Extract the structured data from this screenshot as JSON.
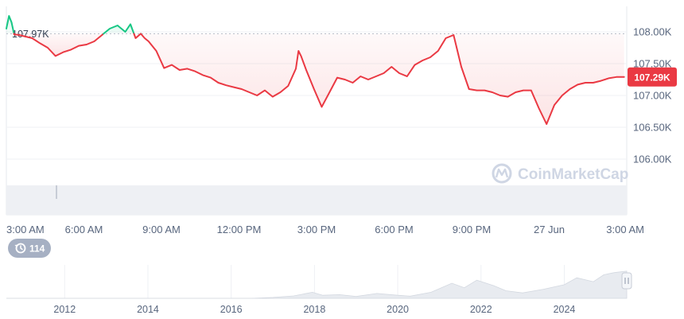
{
  "chart_data": {
    "type": "line",
    "x_ticks": [
      "3:00 AM",
      "6:00 AM",
      "9:00 AM",
      "12:00 PM",
      "3:00 PM",
      "6:00 PM",
      "9:00 PM",
      "27 Jun",
      "3:00 AM"
    ],
    "y_ticks": [
      "108.00K",
      "107.50K",
      "107.00K",
      "106.50K",
      "106.00K"
    ],
    "ylim": [
      105600,
      108400
    ],
    "reference": {
      "label": "107.97K",
      "value": 107970
    },
    "current": {
      "label": "107.29K",
      "value": 107290
    },
    "hours_span": [
      0,
      24
    ],
    "series": [
      {
        "x": [
          0,
          0.1,
          0.2,
          0.3,
          0.5,
          0.7,
          1.0,
          1.3,
          1.6,
          1.9,
          2.2,
          2.5,
          2.8,
          3.1,
          3.4,
          3.7,
          4.0,
          4.3,
          4.6,
          4.8,
          5.0,
          5.2,
          5.35,
          5.5,
          5.8,
          6.1,
          6.4,
          6.7,
          7.0,
          7.3,
          7.6,
          7.9,
          8.2,
          8.5,
          8.8,
          9.1,
          9.4,
          9.7,
          10.0,
          10.3,
          10.6,
          10.9,
          11.2,
          11.3,
          11.4,
          11.6,
          11.9,
          12.2,
          12.5,
          12.8,
          13.1,
          13.4,
          13.7,
          14.0,
          14.3,
          14.6,
          14.9,
          15.2,
          15.5,
          15.8,
          16.1,
          16.4,
          16.7,
          17.0,
          17.3,
          17.6,
          17.9,
          18.2,
          18.5,
          18.8,
          19.1,
          19.4,
          19.7,
          20.0,
          20.3,
          20.6,
          20.9,
          21.2,
          21.5,
          21.8,
          22.1,
          22.4,
          22.7,
          23.0,
          23.3,
          23.6,
          23.9
        ],
        "y": [
          108050,
          108250,
          108150,
          107960,
          107950,
          107930,
          107900,
          107820,
          107750,
          107620,
          107680,
          107720,
          107780,
          107800,
          107850,
          107950,
          108050,
          108100,
          108000,
          108120,
          107900,
          107970,
          107900,
          107850,
          107700,
          107430,
          107480,
          107400,
          107420,
          107380,
          107320,
          107280,
          107200,
          107160,
          107130,
          107100,
          107050,
          107000,
          107080,
          106980,
          107050,
          107150,
          107420,
          107700,
          107620,
          107400,
          107100,
          106820,
          107050,
          107280,
          107250,
          107200,
          107300,
          107250,
          107300,
          107350,
          107450,
          107350,
          107300,
          107480,
          107550,
          107600,
          107700,
          107900,
          107950,
          107450,
          107100,
          107080,
          107080,
          107050,
          107000,
          106980,
          107050,
          107080,
          107080,
          106800,
          106550,
          106850,
          107000,
          107100,
          107170,
          107200,
          107200,
          107230,
          107270,
          107290,
          107290
        ]
      }
    ],
    "up_color": "#16c784",
    "down_color": "#ea3943",
    "grid": true
  },
  "navigator": {
    "year_ticks": [
      "2012",
      "2014",
      "2016",
      "2018",
      "2020",
      "2022",
      "2024"
    ]
  },
  "history_badge": {
    "label": "114",
    "icon": "history-icon"
  },
  "watermark": {
    "text": "CoinMarketCap",
    "icon": "coinmarketcap-logo-icon"
  }
}
